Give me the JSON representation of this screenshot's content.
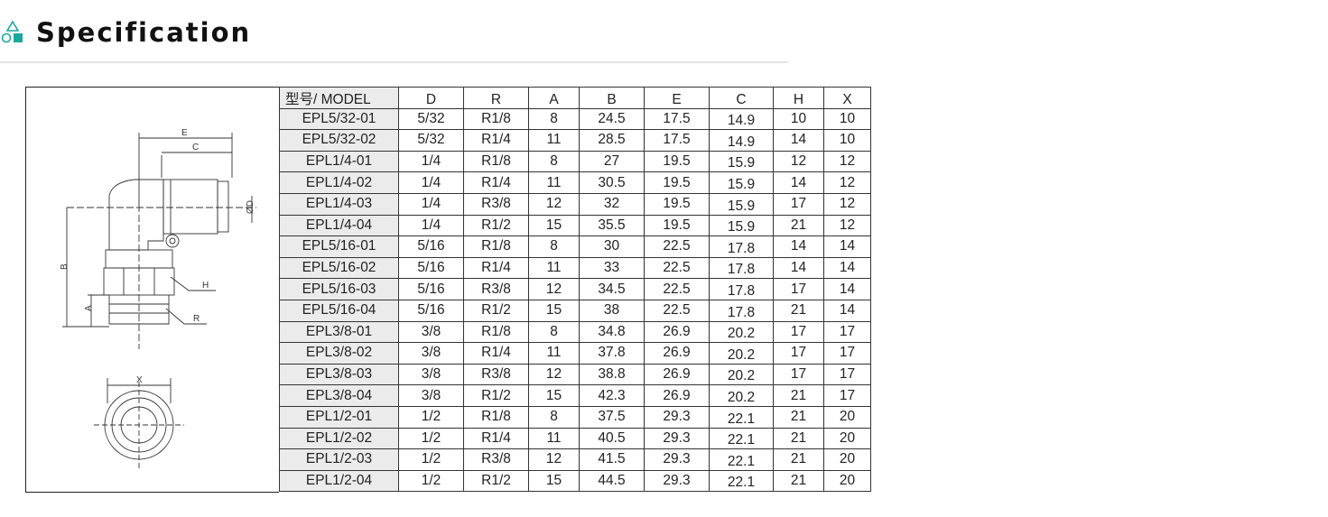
{
  "header": {
    "title": "Specification",
    "icon": "shapes-icon",
    "accent": "#1aa89c"
  },
  "drawing": {
    "labels": {
      "E": "E",
      "C": "C",
      "D": "ØD",
      "B": "B",
      "A": "A",
      "H": "H",
      "R": "R",
      "X": "X"
    }
  },
  "table": {
    "headers": [
      "型号/ MODEL",
      "D",
      "R",
      "A",
      "B",
      "E",
      "C",
      "H",
      "X"
    ],
    "rows": [
      [
        "EPL5/32-01",
        "5/32",
        "R1/8",
        "8",
        "24.5",
        "17.5",
        "14.9",
        "10",
        "10"
      ],
      [
        "EPL5/32-02",
        "5/32",
        "R1/4",
        "11",
        "28.5",
        "17.5",
        "14.9",
        "14",
        "10"
      ],
      [
        "EPL1/4-01",
        "1/4",
        "R1/8",
        "8",
        "27",
        "19.5",
        "15.9",
        "12",
        "12"
      ],
      [
        "EPL1/4-02",
        "1/4",
        "R1/4",
        "11",
        "30.5",
        "19.5",
        "15.9",
        "14",
        "12"
      ],
      [
        "EPL1/4-03",
        "1/4",
        "R3/8",
        "12",
        "32",
        "19.5",
        "15.9",
        "17",
        "12"
      ],
      [
        "EPL1/4-04",
        "1/4",
        "R1/2",
        "15",
        "35.5",
        "19.5",
        "15.9",
        "21",
        "12"
      ],
      [
        "EPL5/16-01",
        "5/16",
        "R1/8",
        "8",
        "30",
        "22.5",
        "17.8",
        "14",
        "14"
      ],
      [
        "EPL5/16-02",
        "5/16",
        "R1/4",
        "11",
        "33",
        "22.5",
        "17.8",
        "14",
        "14"
      ],
      [
        "EPL5/16-03",
        "5/16",
        "R3/8",
        "12",
        "34.5",
        "22.5",
        "17.8",
        "17",
        "14"
      ],
      [
        "EPL5/16-04",
        "5/16",
        "R1/2",
        "15",
        "38",
        "22.5",
        "17.8",
        "21",
        "14"
      ],
      [
        "EPL3/8-01",
        "3/8",
        "R1/8",
        "8",
        "34.8",
        "26.9",
        "20.2",
        "17",
        "17"
      ],
      [
        "EPL3/8-02",
        "3/8",
        "R1/4",
        "11",
        "37.8",
        "26.9",
        "20.2",
        "17",
        "17"
      ],
      [
        "EPL3/8-03",
        "3/8",
        "R3/8",
        "12",
        "38.8",
        "26.9",
        "20.2",
        "17",
        "17"
      ],
      [
        "EPL3/8-04",
        "3/8",
        "R1/2",
        "15",
        "42.3",
        "26.9",
        "20.2",
        "21",
        "17"
      ],
      [
        "EPL1/2-01",
        "1/2",
        "R1/8",
        "8",
        "37.5",
        "29.3",
        "22.1",
        "21",
        "20"
      ],
      [
        "EPL1/2-02",
        "1/2",
        "R1/4",
        "11",
        "40.5",
        "29.3",
        "22.1",
        "21",
        "20"
      ],
      [
        "EPL1/2-03",
        "1/2",
        "R3/8",
        "12",
        "41.5",
        "29.3",
        "22.1",
        "21",
        "20"
      ],
      [
        "EPL1/2-04",
        "1/2",
        "R1/2",
        "15",
        "44.5",
        "29.3",
        "22.1",
        "21",
        "20"
      ]
    ]
  }
}
